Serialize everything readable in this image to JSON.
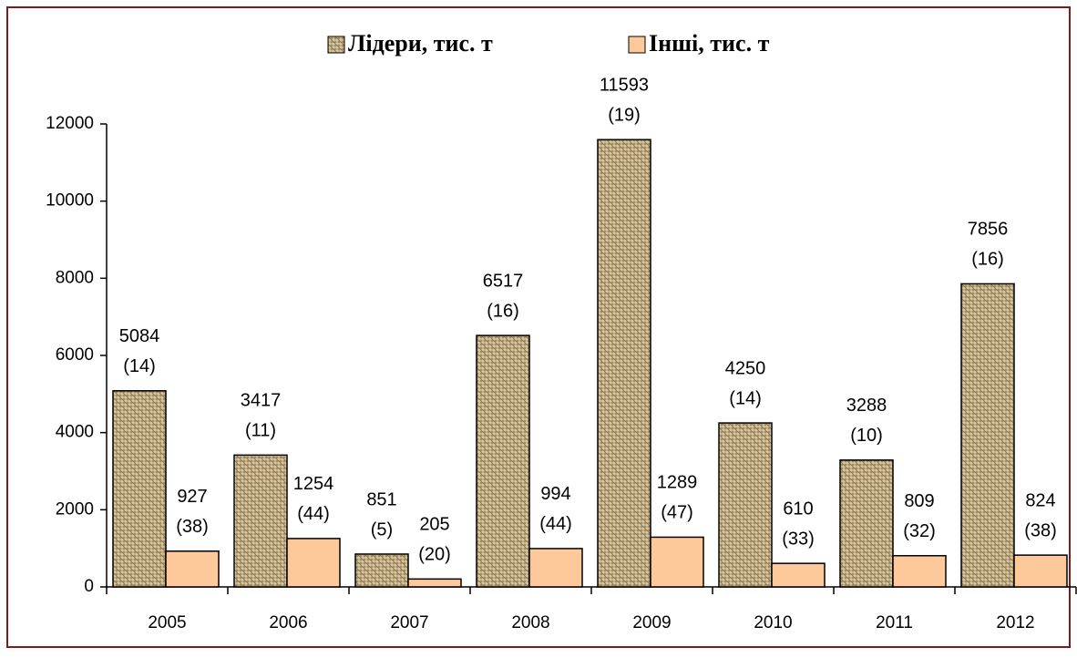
{
  "chart_data": {
    "type": "bar",
    "categories": [
      "2005",
      "2006",
      "2007",
      "2008",
      "2009",
      "2010",
      "2011",
      "2012"
    ],
    "series": [
      {
        "name": "Лідери, тис. т",
        "color": "#c9b48a",
        "values": [
          5084,
          3417,
          851,
          6517,
          11593,
          4250,
          3288,
          7856
        ],
        "value_notes": [
          "(14)",
          "(11)",
          "(5)",
          "(16)",
          "(19)",
          "(14)",
          "(10)",
          "(16)"
        ]
      },
      {
        "name": "Інші, тис. т",
        "color": "#fdc99b",
        "values": [
          927,
          1254,
          205,
          994,
          1289,
          610,
          809,
          824
        ],
        "value_notes": [
          "(38)",
          "(44)",
          "(20)",
          "(44)",
          "(47)",
          "(33)",
          "(32)",
          "(38)"
        ]
      }
    ],
    "ylim": [
      0,
      12000
    ],
    "yticks": [
      0,
      2000,
      4000,
      6000,
      8000,
      10000,
      12000
    ],
    "grid": false
  }
}
